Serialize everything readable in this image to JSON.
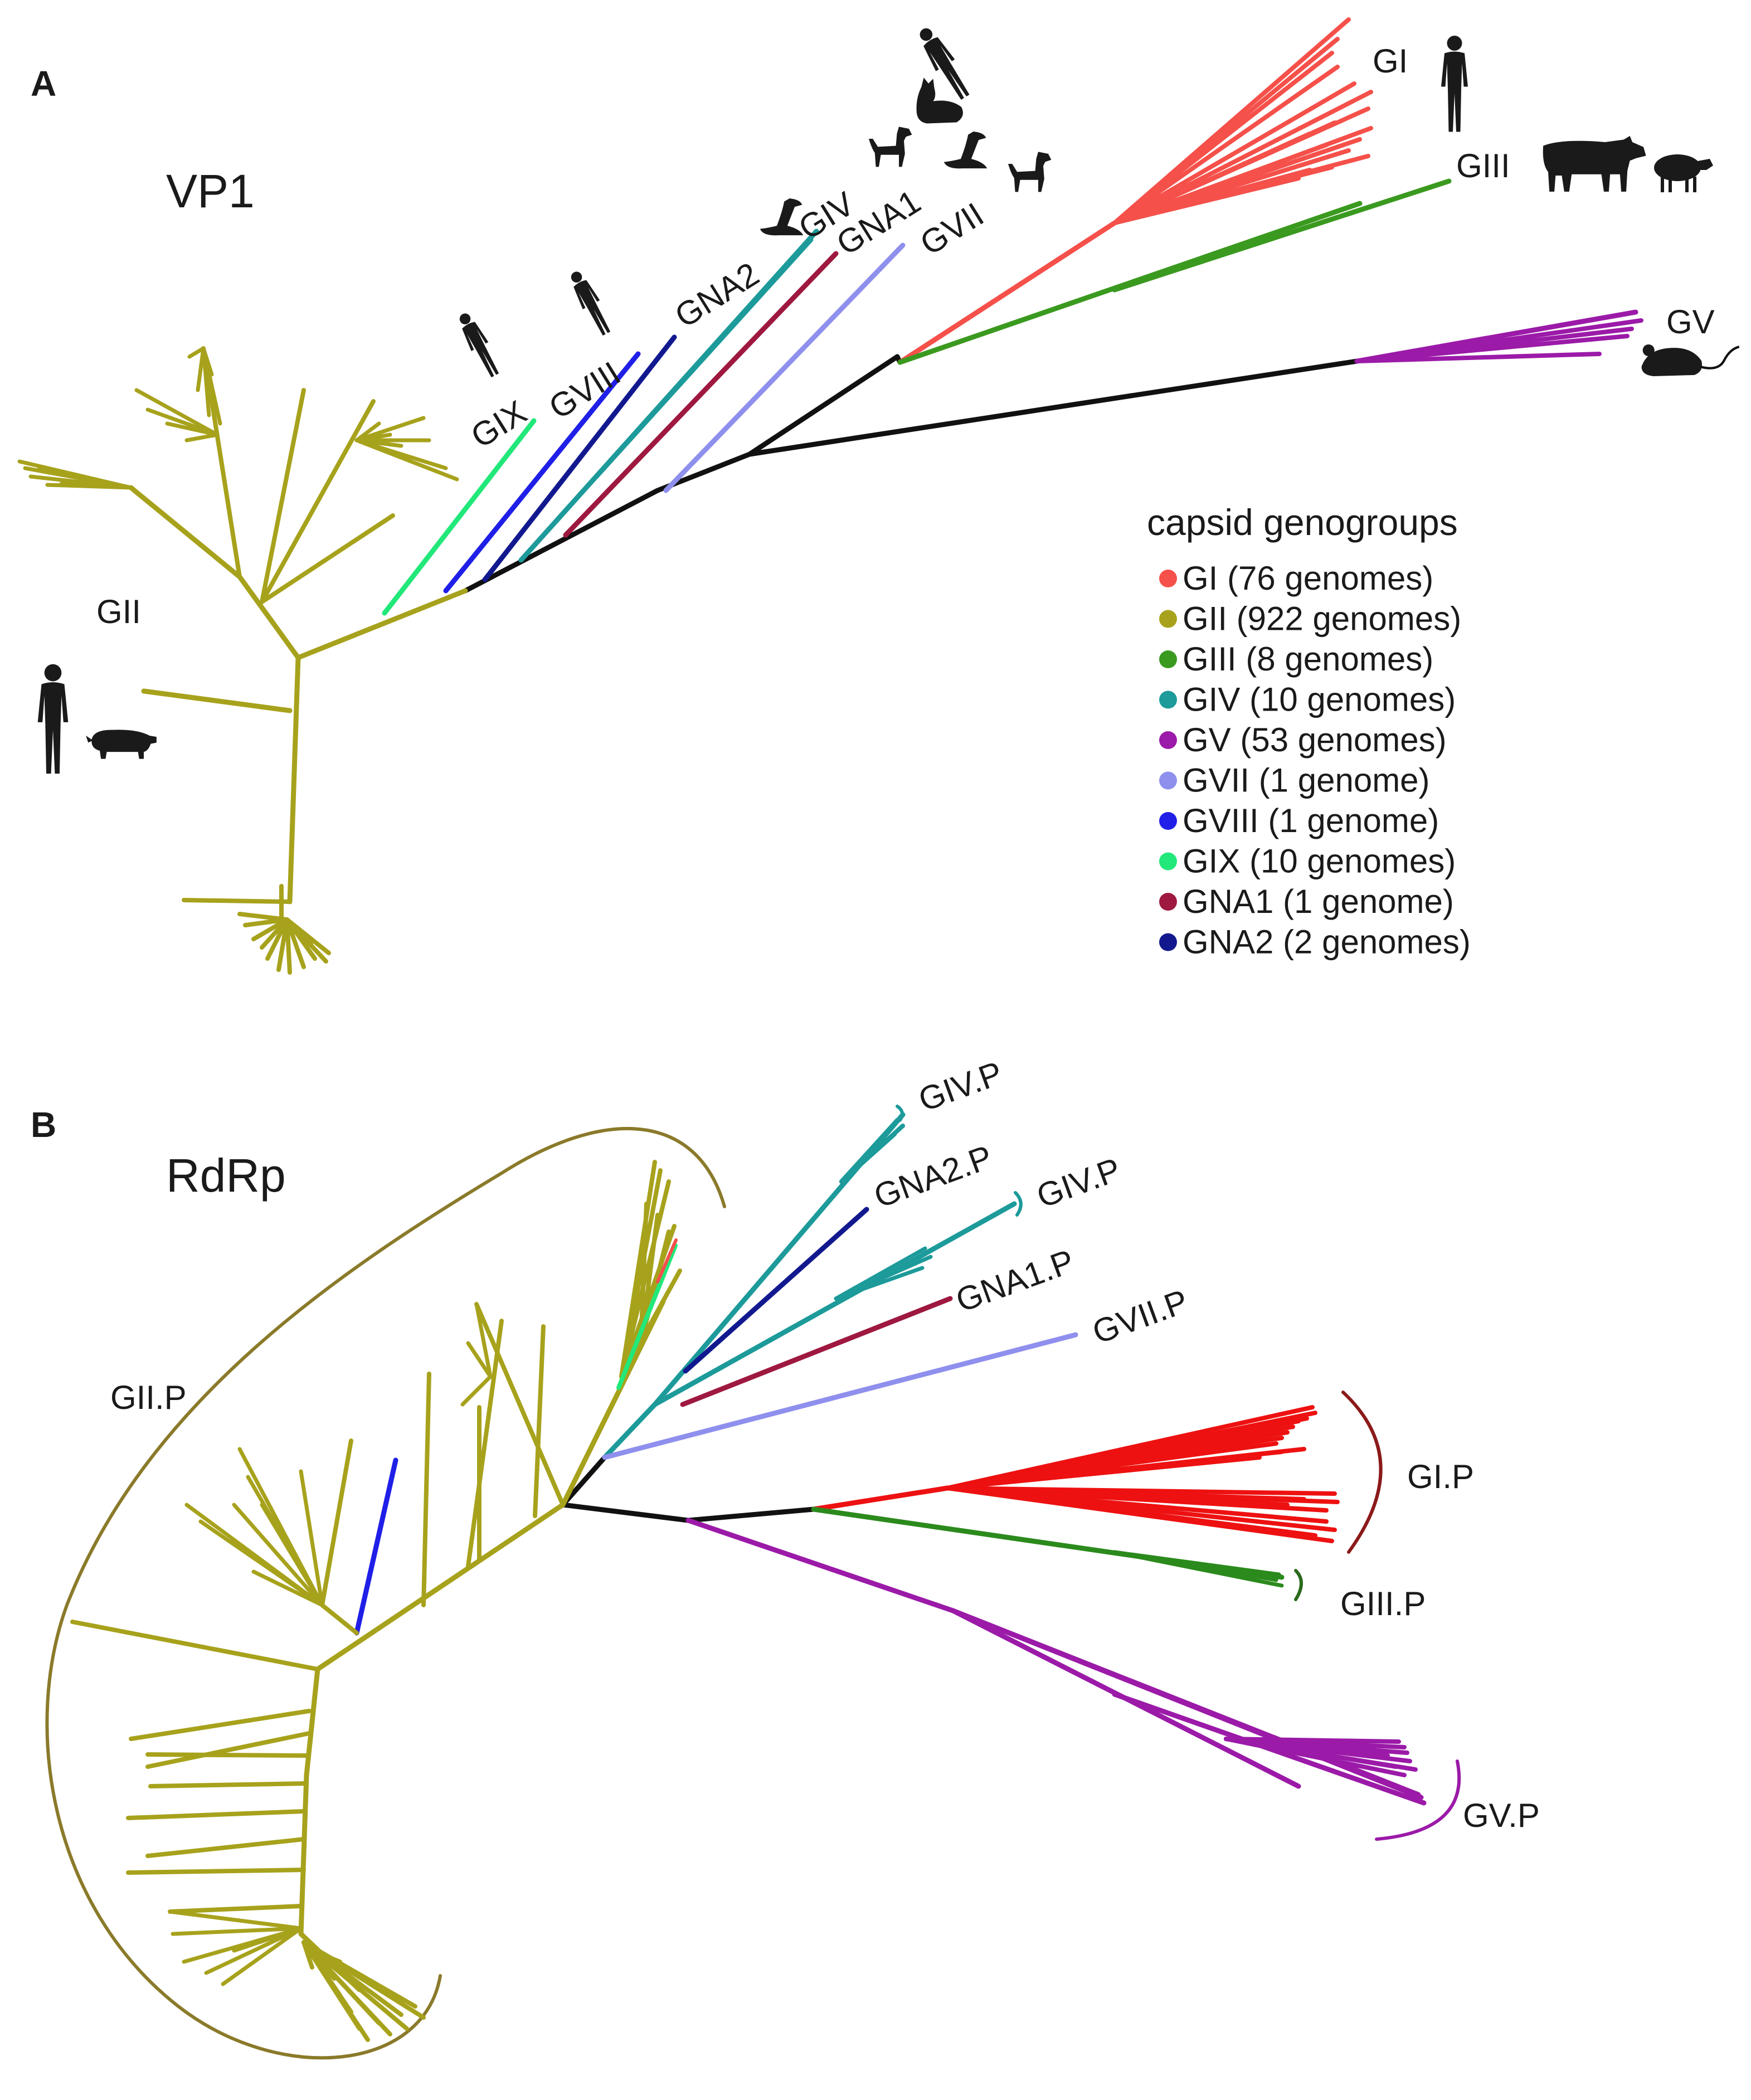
{
  "panel_a": {
    "letter": "A",
    "title": "VP1",
    "clade_labels": {
      "gi": "GI",
      "gii": "GII",
      "giii": "GIII",
      "giv": "GIV",
      "gv": "GV",
      "gvii": "GVII",
      "gviii": "GVIII",
      "gix": "GIX",
      "gna1": "GNA1",
      "gna2": "GNA2"
    }
  },
  "panel_b": {
    "letter": "B",
    "title": "RdRp",
    "clade_labels": {
      "giv_p_1": "GIV.P",
      "gna2_p": "GNA2.P",
      "giv_p_2": "GIV.P",
      "gna1_p": "GNA1.P",
      "gvii_p": "GVII.P",
      "gi_p": "GI.P",
      "giii_p": "GIII.P",
      "gv_p": "GV.P",
      "gii_p": "GII.P"
    }
  },
  "legend": {
    "title": "capsid genogroups",
    "items": [
      {
        "label": "GI (76 genomes)",
        "color": "#f5504a"
      },
      {
        "label": "GII (922 genomes)",
        "color": "#a7a21c"
      },
      {
        "label": "GIII (8 genomes)",
        "color": "#3a9a1f"
      },
      {
        "label": "GIV (10 genomes)",
        "color": "#1d9a9a"
      },
      {
        "label": "GV (53 genomes)",
        "color": "#9b1aa8"
      },
      {
        "label": "GVII (1 genome)",
        "color": "#8f8fee"
      },
      {
        "label": "GVIII (1 genome)",
        "color": "#1f1fe8"
      },
      {
        "label": "GIX (10 genomes)",
        "color": "#22e87a"
      },
      {
        "label": "GNA1 (1 genome)",
        "color": "#9e1840"
      },
      {
        "label": "GNA2 (2 genomes)",
        "color": "#12198f"
      }
    ]
  },
  "colors": {
    "gi": "#f5504a",
    "gii": "#a7a21c",
    "giii": "#3a9a1f",
    "giv": "#1d9a9a",
    "gv": "#9b1aa8",
    "gvii": "#8f8fee",
    "gviii": "#1f1fe8",
    "gix": "#22e87a",
    "gna1": "#9e1840",
    "gna2": "#12198f",
    "backbone": "#111111",
    "gii_outline": "#8a7a2a",
    "rdrp_gi": "#ee1111",
    "rdrp_giii": "#2b8a1c",
    "gi_bracket": "#8b1a1a",
    "giii_bracket": "#2b6a1c"
  },
  "icons": [
    "human-icon",
    "pig-icon",
    "cow-icon",
    "sheep-icon",
    "mouse-icon",
    "dog-icon",
    "sea-lion-icon",
    "cat-icon"
  ]
}
